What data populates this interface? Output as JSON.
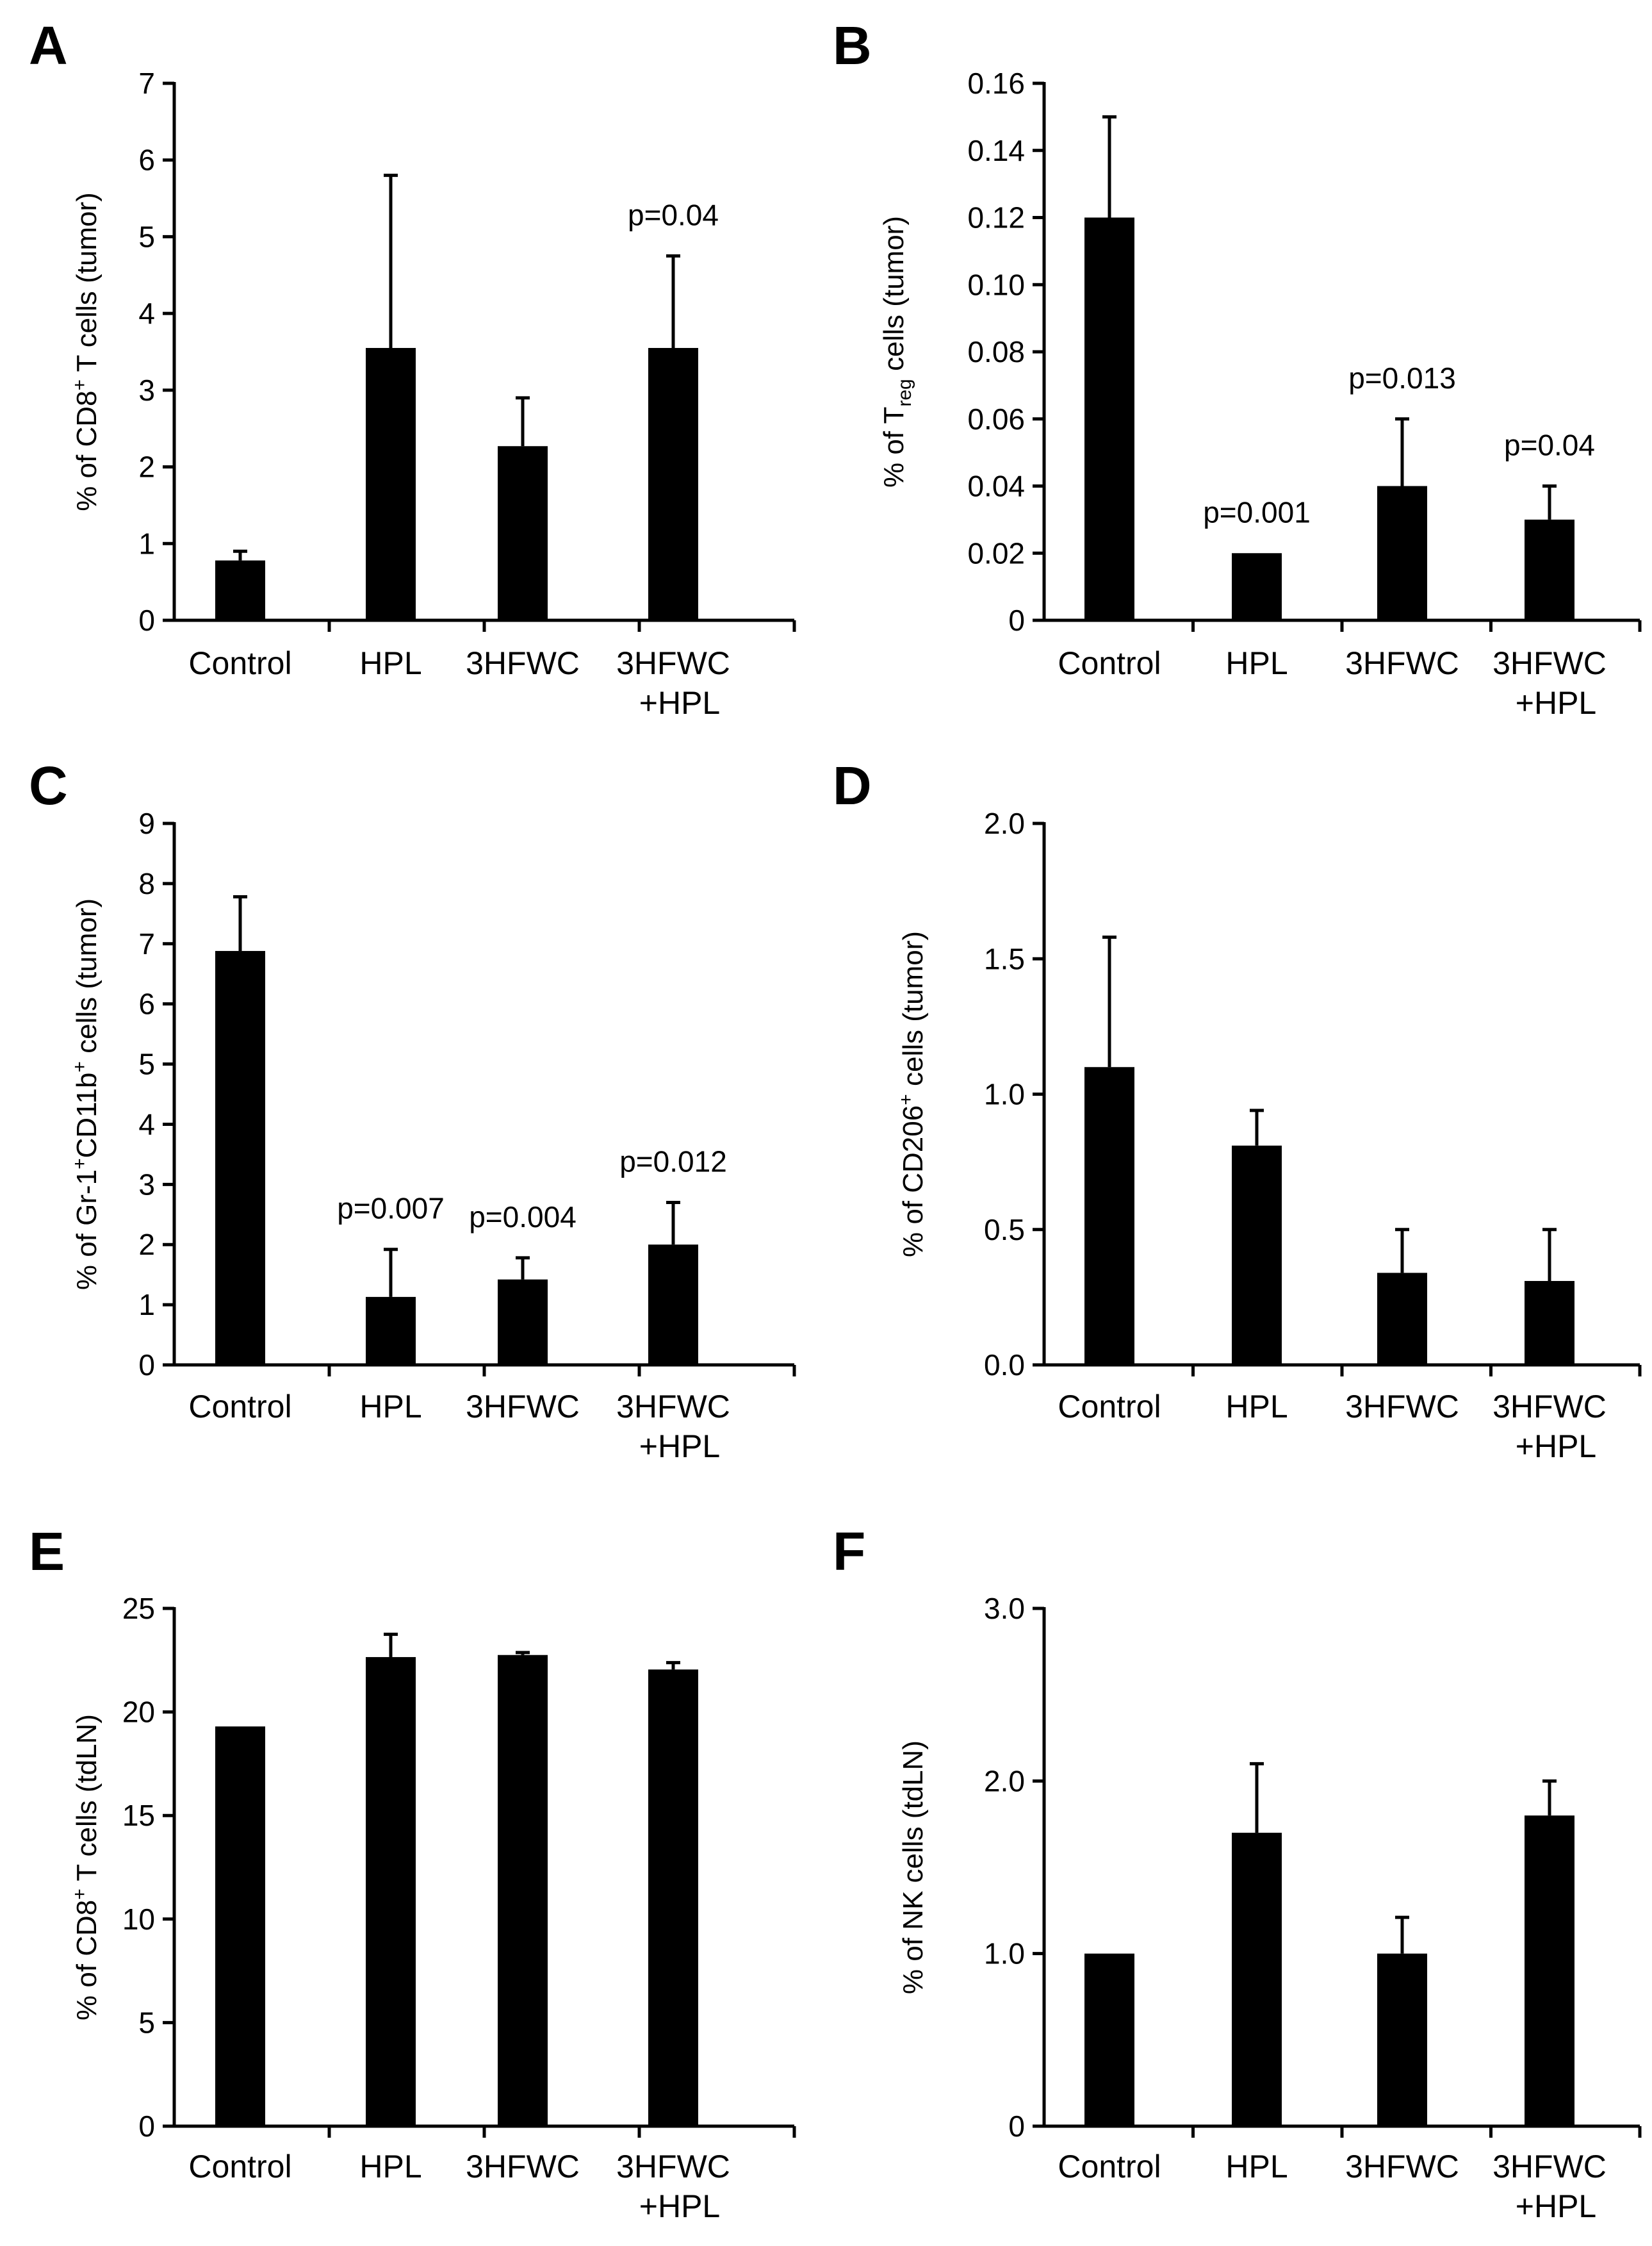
{
  "chart_data": [
    {
      "id": "A",
      "type": "bar",
      "panel_letter": "A",
      "ylabel": {
        "pre": "% of CD8",
        "sup": "+",
        "post": " T cells (tumor)"
      },
      "ylim": [
        0,
        7
      ],
      "yticks": [
        "0",
        "1",
        "2",
        "3",
        "4",
        "5",
        "6",
        "7"
      ],
      "categories": [
        [
          "Control"
        ],
        [
          "HPL"
        ],
        [
          "3HFWC"
        ],
        [
          "3HFWC",
          "+HPL"
        ]
      ],
      "values": [
        0.78,
        3.55,
        2.27,
        3.55
      ],
      "errors": [
        0.12,
        2.25,
        0.63,
        1.2
      ],
      "annotations": [
        "",
        "",
        "",
        "p=0.04"
      ]
    },
    {
      "id": "B",
      "type": "bar",
      "panel_letter": "B",
      "ylabel": {
        "pre": "% of T",
        "sub": "reg",
        "post": " cells (tumor)"
      },
      "ylim": [
        0,
        0.16
      ],
      "yticks": [
        "0",
        "0.02",
        "0.04",
        "0.06",
        "0.08",
        "0.10",
        "0.12",
        "0.14",
        "0.16"
      ],
      "categories": [
        [
          "Control"
        ],
        [
          "HPL"
        ],
        [
          "3HFWC"
        ],
        [
          "3HFWC",
          "+HPL"
        ]
      ],
      "values": [
        0.12,
        0.02,
        0.04,
        0.03
      ],
      "errors": [
        0.03,
        0,
        0.02,
        0.01
      ],
      "annotations": [
        "",
        "p=0.001",
        "p=0.013",
        "p=0.04"
      ]
    },
    {
      "id": "C",
      "type": "bar",
      "panel_letter": "C",
      "ylabel": {
        "pre": "% of Gr-1",
        "sup": "+",
        "mid": "CD11b",
        "sup2": "+",
        "post": " cells (tumor)"
      },
      "ylim": [
        0,
        9
      ],
      "yticks": [
        "0",
        "1",
        "2",
        "3",
        "4",
        "5",
        "6",
        "7",
        "8",
        "9"
      ],
      "categories": [
        [
          "Control"
        ],
        [
          "HPL"
        ],
        [
          "3HFWC"
        ],
        [
          "3HFWC",
          "+HPL"
        ]
      ],
      "values": [
        6.88,
        1.13,
        1.42,
        2.0
      ],
      "errors": [
        0.9,
        0.79,
        0.36,
        0.7
      ],
      "annotations": [
        "",
        "p=0.007",
        "p=0.004",
        "p=0.012"
      ]
    },
    {
      "id": "D",
      "type": "bar",
      "panel_letter": "D",
      "ylabel": {
        "pre": "% of CD206",
        "sup": "+",
        "post": " cells (tumor)"
      },
      "ylim": [
        0,
        2.0
      ],
      "yticks": [
        "0.0",
        "0.5",
        "1.0",
        "1.5",
        "2.0"
      ],
      "categories": [
        [
          "Control"
        ],
        [
          "HPL"
        ],
        [
          "3HFWC"
        ],
        [
          "3HFWC",
          "+HPL"
        ]
      ],
      "values": [
        1.1,
        0.81,
        0.34,
        0.31
      ],
      "errors": [
        0.48,
        0.13,
        0.16,
        0.19
      ],
      "annotations": [
        "",
        "",
        "",
        ""
      ]
    },
    {
      "id": "E",
      "type": "bar",
      "panel_letter": "E",
      "ylabel": {
        "pre": "% of CD8",
        "sup": "+",
        "post": " T cells (tdLN)"
      },
      "ylim": [
        0,
        25
      ],
      "yticks": [
        "0",
        "5",
        "10",
        "15",
        "20",
        "25"
      ],
      "categories": [
        [
          "Control"
        ],
        [
          "HPL"
        ],
        [
          "3HFWC"
        ],
        [
          "3HFWC",
          "+HPL"
        ]
      ],
      "values": [
        19.3,
        22.65,
        22.75,
        22.05
      ],
      "errors": [
        0,
        1.1,
        0.12,
        0.33
      ],
      "annotations": [
        "",
        "",
        "",
        ""
      ]
    },
    {
      "id": "F",
      "type": "bar",
      "panel_letter": "F",
      "ylabel": {
        "pre": "% of NK cells (tdLN)"
      },
      "ylim": [
        0,
        3.0
      ],
      "yticks": [
        "0",
        "1.0",
        "2.0",
        "3.0"
      ],
      "categories": [
        [
          "Control"
        ],
        [
          "HPL"
        ],
        [
          "3HFWC"
        ],
        [
          "3HFWC",
          "+HPL"
        ]
      ],
      "values": [
        1.0,
        1.7,
        1.0,
        1.8
      ],
      "errors": [
        0,
        0.4,
        0.21,
        0.2
      ],
      "annotations": [
        "",
        "",
        "",
        ""
      ]
    }
  ]
}
